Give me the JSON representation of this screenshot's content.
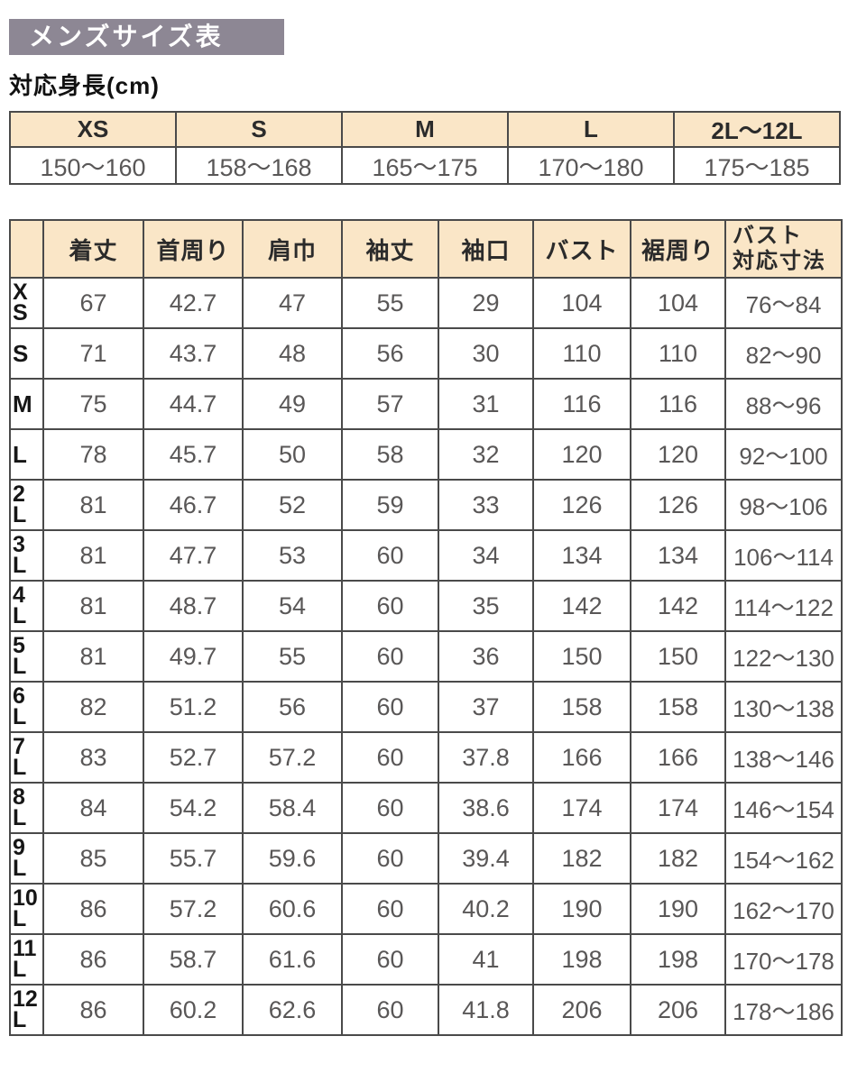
{
  "page": {
    "title": "メンズサイズ表",
    "subtitle": "対応身長(cm)"
  },
  "colors": {
    "title_bar_bg": "#8d8794",
    "title_text": "#ffffff",
    "table_header_bg": "#fae6c7",
    "table_border": "#4a4a4a",
    "value_text": "#595757",
    "label_text": "#161616"
  },
  "height_table": {
    "columns": [
      {
        "size": "XS",
        "range": "150〜160"
      },
      {
        "size": "S",
        "range": "158〜168"
      },
      {
        "size": "M",
        "range": "165〜175"
      },
      {
        "size": "L",
        "range": "170〜180"
      },
      {
        "size": "2L〜12L",
        "range": "175〜185"
      }
    ]
  },
  "size_table": {
    "column_headers": [
      "着丈",
      "首周り",
      "肩巾",
      "袖丈",
      "袖口",
      "バスト",
      "裾周り",
      "バスト\n対応寸法"
    ],
    "rows": [
      {
        "size": "XS",
        "values": [
          "67",
          "42.7",
          "47",
          "55",
          "29",
          "104",
          "104",
          "76〜84"
        ]
      },
      {
        "size": "S",
        "values": [
          "71",
          "43.7",
          "48",
          "56",
          "30",
          "110",
          "110",
          "82〜90"
        ]
      },
      {
        "size": "M",
        "values": [
          "75",
          "44.7",
          "49",
          "57",
          "31",
          "116",
          "116",
          "88〜96"
        ]
      },
      {
        "size": "L",
        "values": [
          "78",
          "45.7",
          "50",
          "58",
          "32",
          "120",
          "120",
          "92〜100"
        ]
      },
      {
        "size": "2L",
        "values": [
          "81",
          "46.7",
          "52",
          "59",
          "33",
          "126",
          "126",
          "98〜106"
        ]
      },
      {
        "size": "3L",
        "values": [
          "81",
          "47.7",
          "53",
          "60",
          "34",
          "134",
          "134",
          "106〜114"
        ]
      },
      {
        "size": "4L",
        "values": [
          "81",
          "48.7",
          "54",
          "60",
          "35",
          "142",
          "142",
          "114〜122"
        ]
      },
      {
        "size": "5L",
        "values": [
          "81",
          "49.7",
          "55",
          "60",
          "36",
          "150",
          "150",
          "122〜130"
        ]
      },
      {
        "size": "6L",
        "values": [
          "82",
          "51.2",
          "56",
          "60",
          "37",
          "158",
          "158",
          "130〜138"
        ]
      },
      {
        "size": "7L",
        "values": [
          "83",
          "52.7",
          "57.2",
          "60",
          "37.8",
          "166",
          "166",
          "138〜146"
        ]
      },
      {
        "size": "8L",
        "values": [
          "84",
          "54.2",
          "58.4",
          "60",
          "38.6",
          "174",
          "174",
          "146〜154"
        ]
      },
      {
        "size": "9L",
        "values": [
          "85",
          "55.7",
          "59.6",
          "60",
          "39.4",
          "182",
          "182",
          "154〜162"
        ]
      },
      {
        "size": "10L",
        "values": [
          "86",
          "57.2",
          "60.6",
          "60",
          "40.2",
          "190",
          "190",
          "162〜170"
        ]
      },
      {
        "size": "11L",
        "values": [
          "86",
          "58.7",
          "61.6",
          "60",
          "41",
          "198",
          "198",
          "170〜178"
        ]
      },
      {
        "size": "12L",
        "values": [
          "86",
          "60.2",
          "62.6",
          "60",
          "41.8",
          "206",
          "206",
          "178〜186"
        ]
      }
    ]
  }
}
